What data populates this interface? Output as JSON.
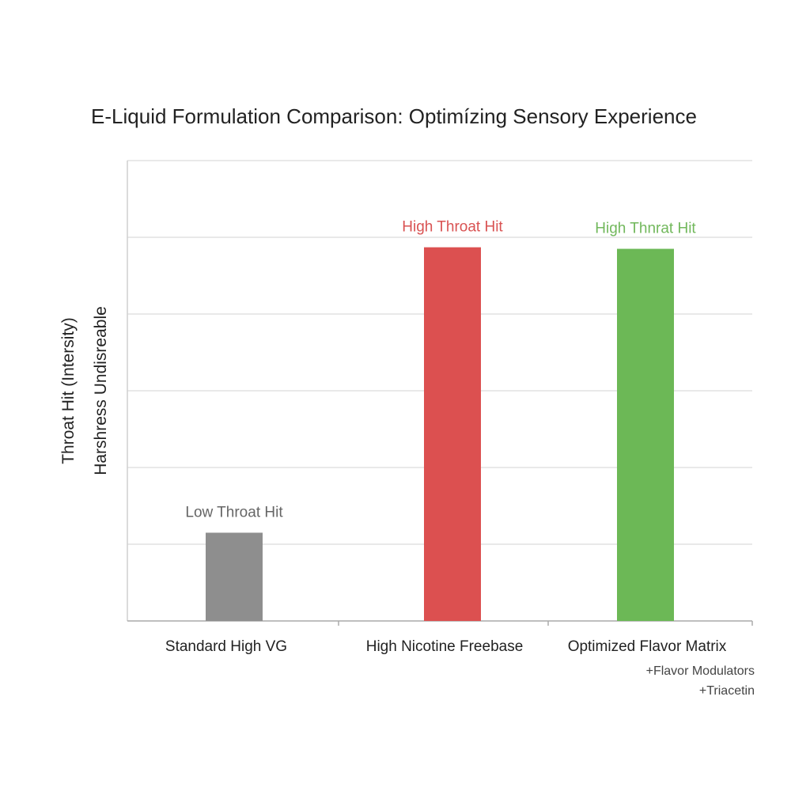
{
  "chart_data": {
    "type": "bar",
    "title": "E-Liquid Formulation Comparison: Optimízing Sensory Experience",
    "ylabel_lines": [
      "Throat Hit (Intersity)",
      "Harshress Undisreable"
    ],
    "xlabel": "",
    "categories": [
      "Standard High VG",
      "High Nicotine Freebase",
      "Optimized Flavor Matrix"
    ],
    "values": [
      1.15,
      4.87,
      4.85
    ],
    "data_labels": [
      "Low Throat Hit",
      "High Throat Hit",
      "High Thnrat Hit"
    ],
    "colors": [
      "#8e8e8e",
      "#dc5050",
      "#6cb856"
    ],
    "label_colors": [
      "#666666",
      "#d95353",
      "#72b85c"
    ],
    "notes": [
      "+Flavor Modulators",
      "+Triacetin"
    ],
    "ylim": [
      0,
      6
    ],
    "grid": true,
    "y_ticks_labeled": false
  }
}
